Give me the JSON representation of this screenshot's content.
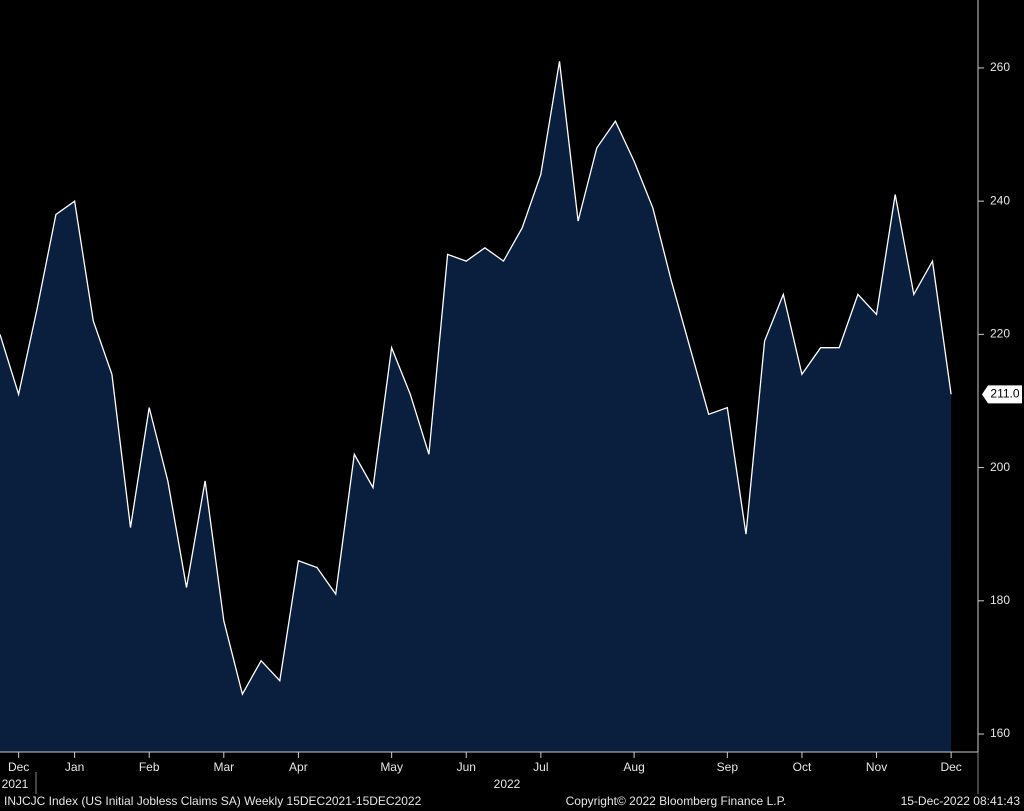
{
  "chart_data": {
    "type": "area",
    "title": "INJCJC Index (US Initial Jobless Claims SA)  Weekly 15DEC2021-15DEC2022",
    "copyright": "Copyright© 2022 Bloomberg Finance L.P.",
    "timestamp": "15-Dec-2022 08:41:43",
    "categories": [
      null,
      "Dec",
      null,
      null,
      "Jan",
      null,
      null,
      null,
      "Feb",
      null,
      null,
      null,
      "Mar",
      null,
      null,
      null,
      "Apr",
      null,
      null,
      null,
      null,
      "May",
      null,
      null,
      null,
      "Jun",
      null,
      null,
      null,
      "Jul",
      null,
      null,
      null,
      null,
      "Aug",
      null,
      null,
      null,
      null,
      "Sep",
      null,
      null,
      null,
      "Oct",
      null,
      null,
      null,
      "Nov",
      null,
      null,
      null,
      "Dec"
    ],
    "year_labels": [
      "2021",
      "2022"
    ],
    "values": [
      220,
      211,
      224,
      238,
      240,
      222,
      214,
      191,
      209,
      198,
      182,
      198,
      177,
      166,
      171,
      168,
      186,
      185,
      181,
      202,
      197,
      218,
      211,
      202,
      232,
      231,
      233,
      231,
      236,
      244,
      261,
      237,
      248,
      252,
      246,
      239,
      228,
      218,
      208,
      209,
      190,
      219,
      226,
      214,
      218,
      218,
      226,
      223,
      241,
      226,
      231,
      211
    ],
    "last_label": "211.0",
    "color": "#0a1f3d",
    "line_color": "#ffffff",
    "ylim": [
      157.3,
      270.2
    ],
    "yticks": [
      160,
      180,
      200,
      220,
      240,
      260
    ]
  }
}
